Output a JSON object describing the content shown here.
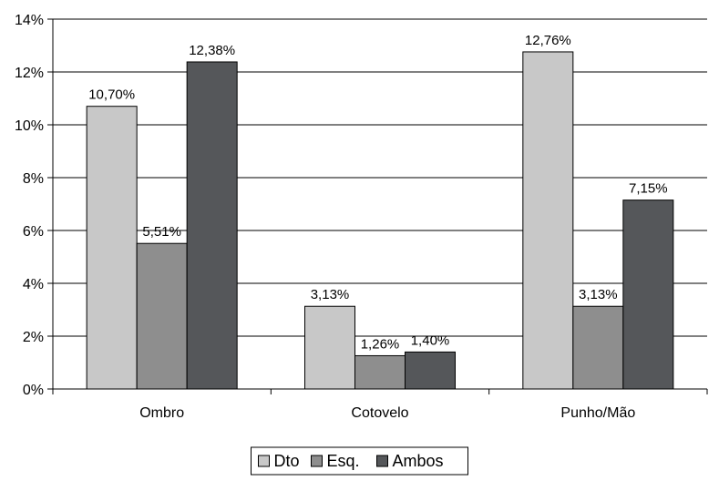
{
  "chart_data": {
    "type": "bar",
    "categories": [
      "Ombro",
      "Cotovelo",
      "Punho/Mão"
    ],
    "series": [
      {
        "name": "Dto",
        "color": "#c8c8c8",
        "values": [
          10.7,
          3.13,
          12.76
        ],
        "labels": [
          "10,70%",
          "3,13%",
          "12,76%"
        ]
      },
      {
        "name": "Esq.",
        "color": "#8e8e8e",
        "values": [
          5.51,
          1.26,
          3.13
        ],
        "labels": [
          "5,51%",
          "1,26%",
          "3,13%"
        ]
      },
      {
        "name": "Ambos",
        "color": "#55575a",
        "values": [
          12.38,
          1.4,
          7.15
        ],
        "labels": [
          "12,38%",
          "1,40%",
          "7,15%"
        ]
      }
    ],
    "y_ticks": [
      {
        "value": 0,
        "label": "0%"
      },
      {
        "value": 2,
        "label": "2%"
      },
      {
        "value": 4,
        "label": "4%"
      },
      {
        "value": 6,
        "label": "6%"
      },
      {
        "value": 8,
        "label": "8%"
      },
      {
        "value": 10,
        "label": "10%"
      },
      {
        "value": 12,
        "label": "12%"
      },
      {
        "value": 14,
        "label": "14%"
      }
    ],
    "ylim": [
      0,
      14
    ],
    "grid": true,
    "legend_position": "bottom-center",
    "title": "",
    "xlabel": "",
    "ylabel": ""
  }
}
